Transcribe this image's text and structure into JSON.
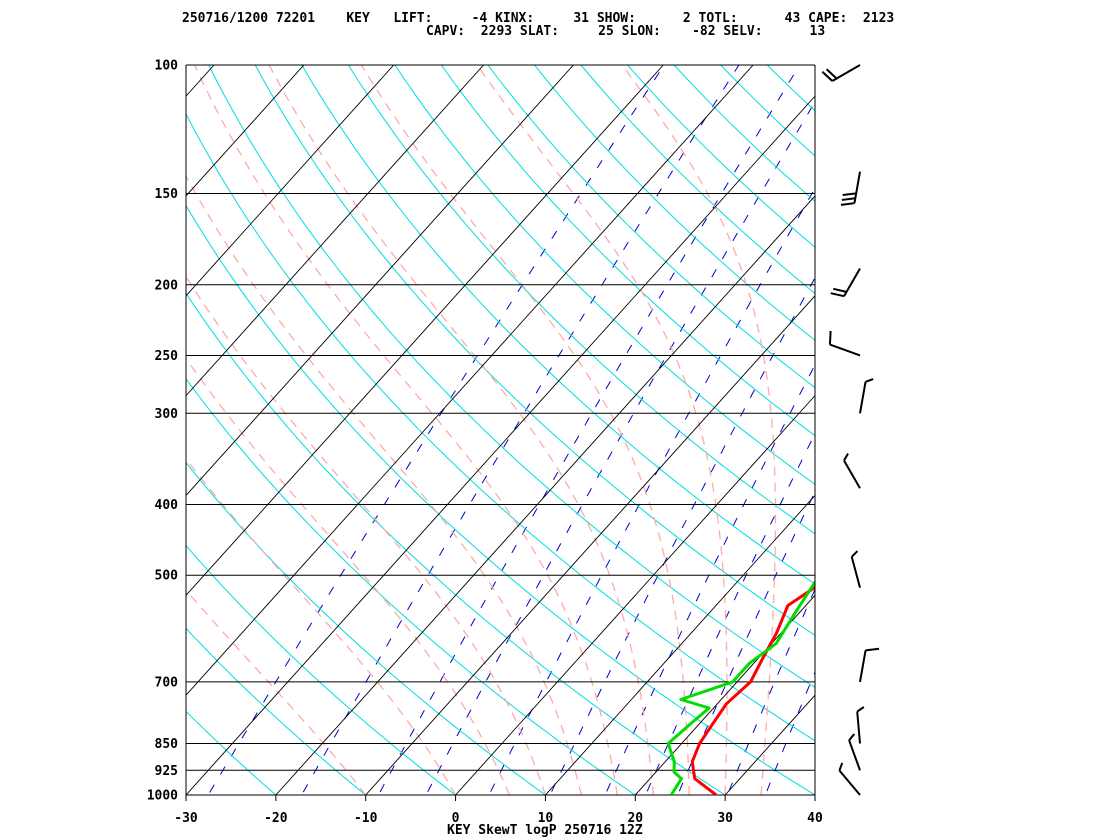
{
  "header": {
    "line1": "250716/1200 72201    KEY   LIFT:     -4 KINX:     31 SHOW:      2 TOTL:      43 CAPE:  2123",
    "line2": "CAPV:  2293 SLAT:     25 SLON:    -82 SELV:      13"
  },
  "chart_data": {
    "type": "line",
    "title": "KEY SkewT logP 250716 12Z",
    "xlabel": "",
    "ylabel": "",
    "xlim": [
      -30,
      40
    ],
    "ylim": [
      1000,
      100
    ],
    "y_scale": "log",
    "x_ticks": [
      "-30",
      "-20",
      "-10",
      "0",
      "10",
      "20",
      "30",
      "40"
    ],
    "x_tick_values": [
      -30,
      -20,
      -10,
      0,
      10,
      20,
      30,
      40
    ],
    "y_ticks": [
      "100",
      "150",
      "200",
      "250",
      "300",
      "400",
      "500",
      "700",
      "850",
      "925",
      "1000"
    ],
    "y_tick_values": [
      100,
      150,
      200,
      250,
      300,
      400,
      500,
      700,
      850,
      925,
      1000
    ],
    "series": [
      {
        "id": "temperature",
        "color": "#ff0000",
        "points": [
          [
            29,
            1000
          ],
          [
            25,
            950
          ],
          [
            24,
            925
          ],
          [
            23,
            900
          ],
          [
            22,
            850
          ],
          [
            21.5,
            800
          ],
          [
            21,
            750
          ],
          [
            21.5,
            700
          ],
          [
            20.5,
            650
          ],
          [
            19.5,
            600
          ],
          [
            18,
            550
          ],
          [
            20,
            500
          ],
          [
            19,
            460
          ],
          [
            16.5,
            400
          ],
          [
            14.5,
            360
          ],
          [
            12,
            320
          ],
          [
            10,
            300
          ],
          [
            7,
            270
          ],
          [
            5,
            250
          ],
          [
            2,
            220
          ],
          [
            1.5,
            200
          ],
          [
            2.5,
            190
          ],
          [
            1.5,
            175
          ],
          [
            2,
            160
          ],
          [
            2.5,
            150
          ],
          [
            3,
            140
          ],
          [
            4.5,
            130
          ],
          [
            6,
            120
          ],
          [
            7,
            110
          ],
          [
            8,
            100
          ]
        ]
      },
      {
        "id": "dewpoint",
        "color": "#00dd00",
        "points": [
          [
            24,
            1000
          ],
          [
            23.5,
            950
          ],
          [
            22,
            930
          ],
          [
            21,
            900
          ],
          [
            18.5,
            850
          ],
          [
            19,
            800
          ],
          [
            19.5,
            760
          ],
          [
            15.5,
            740
          ],
          [
            19.5,
            700
          ],
          [
            19.5,
            660
          ],
          [
            20.5,
            620
          ],
          [
            19.5,
            560
          ],
          [
            18.5,
            500
          ],
          [
            17.5,
            460
          ],
          [
            15,
            400
          ],
          [
            12.5,
            370
          ],
          [
            9,
            330
          ],
          [
            8.5,
            300
          ],
          [
            6.5,
            280
          ],
          [
            3.5,
            250
          ],
          [
            1.5,
            225
          ],
          [
            0,
            205
          ],
          [
            -4.5,
            185
          ],
          [
            -4.5,
            170
          ],
          [
            -6.5,
            160
          ],
          [
            -1,
            155
          ],
          [
            -6.5,
            145
          ],
          [
            -1,
            140
          ],
          [
            -5,
            130
          ],
          [
            -3,
            125
          ],
          [
            -4.5,
            115
          ],
          [
            -2,
            108
          ],
          [
            0,
            100
          ]
        ]
      }
    ],
    "background": {
      "isotherm_color": "#000000",
      "isobar_color": "#000000",
      "dry_adiabat_color": "#00dddd",
      "moist_adiabat_color": "#ffaaaa",
      "mixing_ratio_color": "#0000cc",
      "profile_line_color": "#ff0000"
    },
    "wind_barbs": [
      {
        "p": 100,
        "speed": 20,
        "dir": 240
      },
      {
        "p": 140,
        "speed": 30,
        "dir": 190
      },
      {
        "p": 190,
        "speed": 20,
        "dir": 210
      },
      {
        "p": 250,
        "speed": 10,
        "dir": 290
      },
      {
        "p": 300,
        "speed": 5,
        "dir": 10
      },
      {
        "p": 380,
        "speed": 5,
        "dir": 330
      },
      {
        "p": 520,
        "speed": 5,
        "dir": 345
      },
      {
        "p": 700,
        "speed": 10,
        "dir": 10
      },
      {
        "p": 850,
        "speed": 5,
        "dir": 355
      },
      {
        "p": 925,
        "speed": 5,
        "dir": 340
      },
      {
        "p": 1000,
        "speed": 5,
        "dir": 320
      }
    ]
  }
}
